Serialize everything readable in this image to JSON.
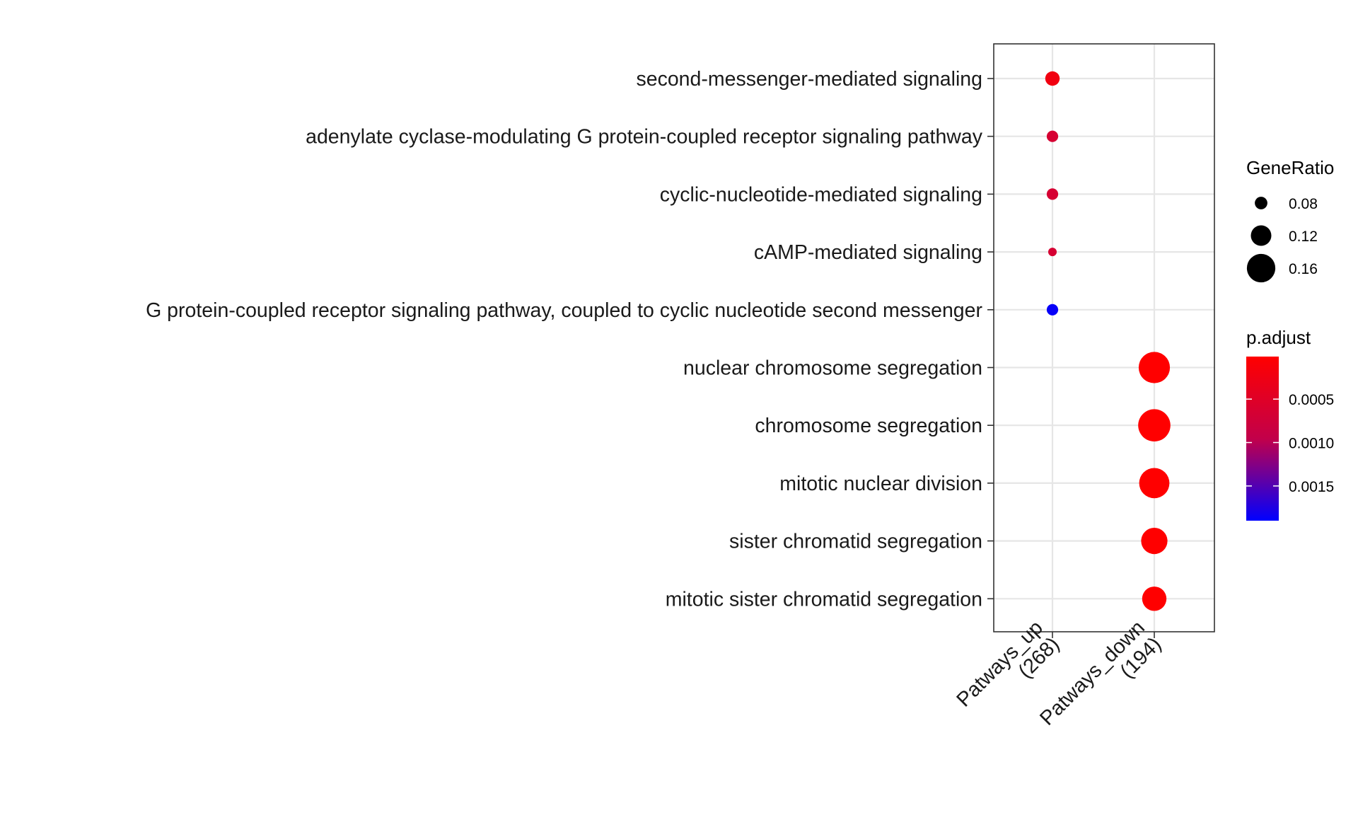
{
  "chart_data": {
    "type": "dot",
    "title": "",
    "xlabel": "",
    "ylabel": "",
    "categories_x": [
      {
        "line1": "Patways_up",
        "line2": "(268)"
      },
      {
        "line1": "Patways_down",
        "line2": "(194)"
      }
    ],
    "categories_y": [
      "second-messenger-mediated signaling",
      "adenylate cyclase-modulating G protein-coupled receptor signaling pathway",
      "cyclic-nucleotide-mediated signaling",
      "cAMP-mediated signaling",
      "G protein-coupled receptor signaling pathway, coupled to cyclic nucleotide second messenger",
      "nuclear chromosome segregation",
      "chromosome segregation",
      "mitotic nuclear division",
      "sister chromatid segregation",
      "mitotic sister chromatid segregation"
    ],
    "points": [
      {
        "x": 0,
        "y": 0,
        "gene_ratio": 0.075,
        "p_adjust": 0.00022
      },
      {
        "x": 0,
        "y": 1,
        "gene_ratio": 0.06,
        "p_adjust": 0.00065
      },
      {
        "x": 0,
        "y": 2,
        "gene_ratio": 0.06,
        "p_adjust": 0.00065
      },
      {
        "x": 0,
        "y": 3,
        "gene_ratio": 0.045,
        "p_adjust": 0.00065
      },
      {
        "x": 0,
        "y": 4,
        "gene_ratio": 0.06,
        "p_adjust": 0.00185
      },
      {
        "x": 1,
        "y": 5,
        "gene_ratio": 0.16,
        "p_adjust": 1e-05
      },
      {
        "x": 1,
        "y": 6,
        "gene_ratio": 0.165,
        "p_adjust": 1e-05
      },
      {
        "x": 1,
        "y": 7,
        "gene_ratio": 0.155,
        "p_adjust": 1e-05
      },
      {
        "x": 1,
        "y": 8,
        "gene_ratio": 0.135,
        "p_adjust": 1e-05
      },
      {
        "x": 1,
        "y": 9,
        "gene_ratio": 0.125,
        "p_adjust": 1e-05
      }
    ],
    "size_legend": {
      "title": "GeneRatio",
      "values": [
        0.08,
        0.12,
        0.16
      ],
      "labels": [
        "0.08",
        "0.12",
        "0.16"
      ]
    },
    "color_legend": {
      "title": "p.adjust",
      "range": [
        1e-05,
        0.0019
      ],
      "ticks": [
        0.0005,
        0.001,
        0.0015
      ],
      "tick_labels": [
        "0.0005",
        "0.0010",
        "0.0015"
      ],
      "low_color": "#ff0000",
      "high_color": "#0000ff"
    },
    "grid": true,
    "panel_border": true
  }
}
